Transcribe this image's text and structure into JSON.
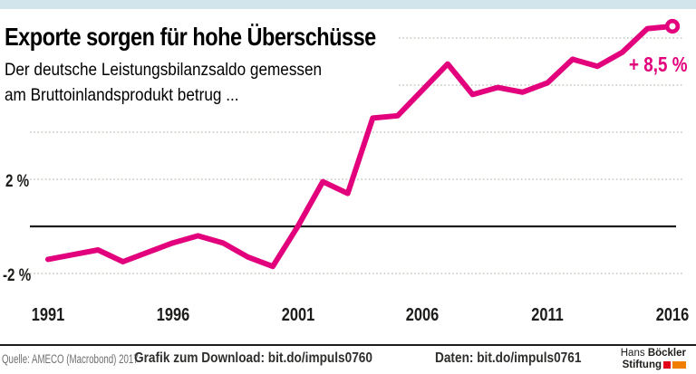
{
  "colors": {
    "accent_bar": "#d3e5ec",
    "line": "#e2007d",
    "grid_dots": "#c6c6bc",
    "zero_line": "#1d1d1b",
    "source_gray": "#706f6f",
    "logo_red": "#e2001a",
    "logo_orange": "#f07f00"
  },
  "chart_data": {
    "type": "line",
    "title": "Exporte sorgen für hohe Überschüsse",
    "subtitle_lines": [
      "Der deutsche Leistungsbilanzsaldo gemessen",
      "am Bruttoinlandsprodukt betrug ..."
    ],
    "x": [
      1991,
      1992,
      1993,
      1994,
      1995,
      1996,
      1997,
      1998,
      1999,
      2000,
      2001,
      2002,
      2003,
      2004,
      2005,
      2006,
      2007,
      2008,
      2009,
      2010,
      2011,
      2012,
      2013,
      2014,
      2015,
      2016
    ],
    "values": [
      -1.4,
      -1.2,
      -1.0,
      -1.5,
      -1.1,
      -0.7,
      -0.4,
      -0.7,
      -1.3,
      -1.7,
      0.0,
      1.9,
      1.4,
      4.6,
      4.7,
      5.8,
      6.9,
      5.6,
      5.9,
      5.7,
      6.1,
      7.1,
      6.8,
      7.4,
      8.4,
      8.5
    ],
    "unit": "% des BIP",
    "annotation": {
      "text": "+ 8,5 %",
      "year": 2016
    },
    "x_tick_labels": [
      "1991",
      "1996",
      "2001",
      "2006",
      "2011",
      "2016"
    ],
    "y_axis": {
      "top_label": "2 %",
      "bottom_label": "-2 %"
    },
    "gridline_values": [
      8,
      6,
      4,
      2,
      -2
    ],
    "baseline": 0,
    "xlim": [
      1991,
      2016
    ],
    "ylim": [
      -2.5,
      9
    ],
    "grid": true,
    "legend": "none",
    "marker_last": "open-circle"
  },
  "footer": {
    "source": "Quelle: AMECO (Macrobond) 2017",
    "download": "Grafik zum Download: bit.do/impuls0760",
    "data_link": "Daten: bit.do/impuls0761"
  },
  "logo": {
    "name_regular": "Hans",
    "name_bold": "Böckler",
    "line2": "Stiftung"
  }
}
